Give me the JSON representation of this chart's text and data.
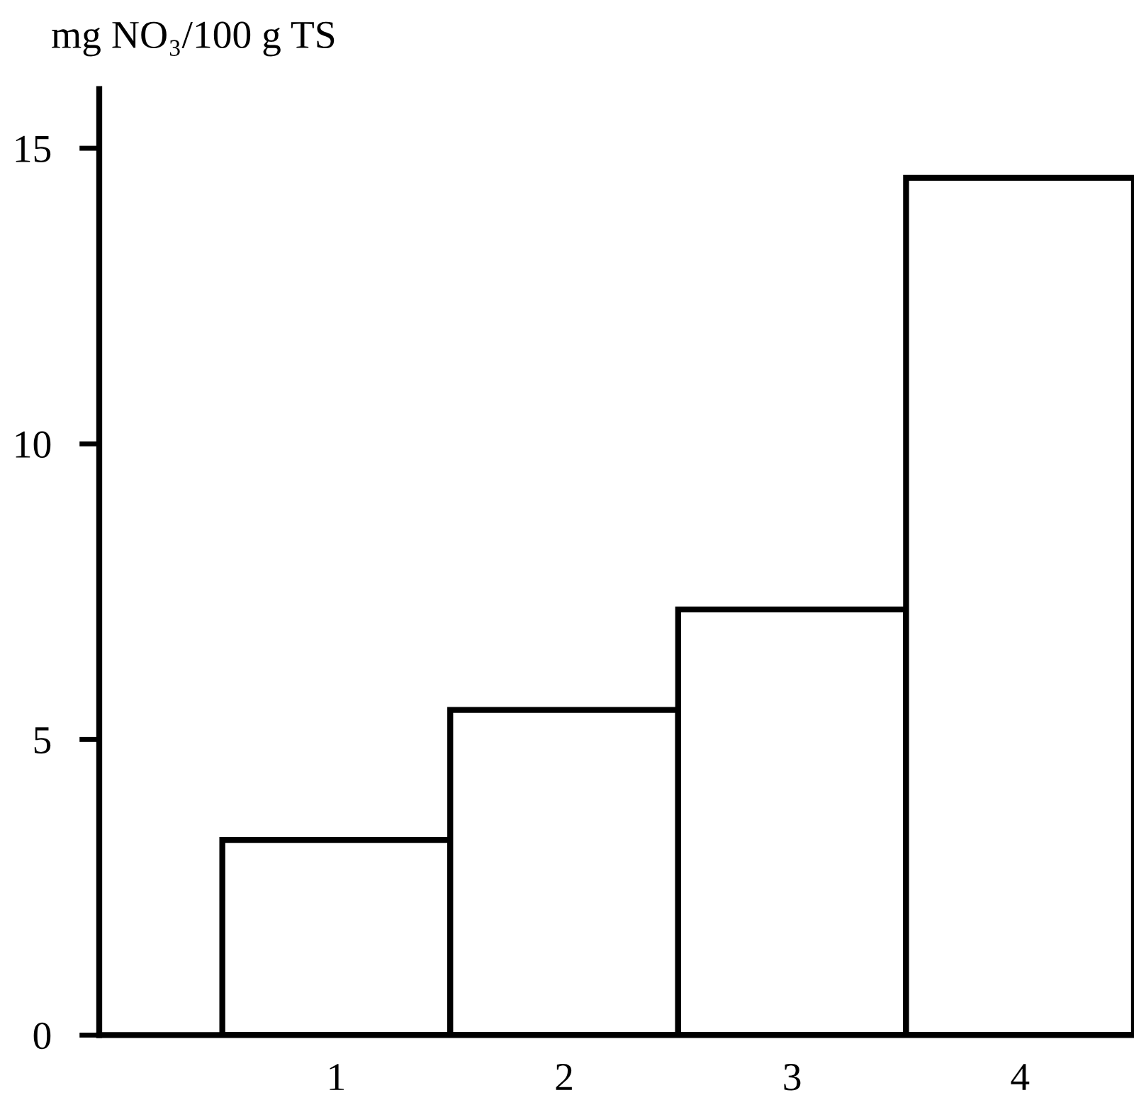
{
  "chart_data": {
    "type": "bar",
    "ylabel": "mg NO₃/100 g TS",
    "categories": [
      "1",
      "2",
      "3",
      "4"
    ],
    "values": [
      3.3,
      5.5,
      7.2,
      14.5
    ],
    "color": "#ffffff",
    "ylim": [
      0,
      16
    ],
    "yticks": [
      0,
      5,
      10,
      15
    ],
    "grid": false
  }
}
